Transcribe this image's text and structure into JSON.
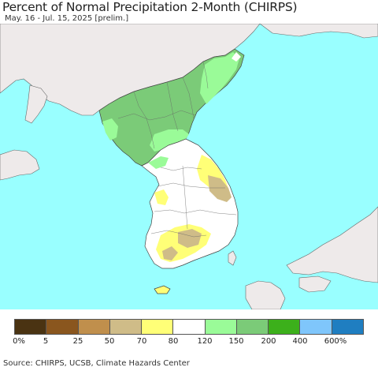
{
  "header": {
    "title": "Percent of Normal Precipitation 2-Month (CHIRPS)",
    "subtitle": "May. 16 - Jul. 15, 2025 [prelim.]"
  },
  "map": {
    "colors": {
      "ocean": "#99ffff",
      "land_outside": "#eeeaea",
      "border": "#444444"
    },
    "precipitation_classes": [
      {
        "range": "0-5%",
        "color": "#4a3312"
      },
      {
        "range": "5-25%",
        "color": "#8a561e"
      },
      {
        "range": "25-50%",
        "color": "#c08f4c"
      },
      {
        "range": "50-70%",
        "color": "#cfbc88"
      },
      {
        "range": "70-80%",
        "color": "#ffff77"
      },
      {
        "range": "80-120%",
        "color": "#ffffff"
      },
      {
        "range": "120-150%",
        "color": "#9afb98"
      },
      {
        "range": "150-200%",
        "color": "#7bcb78"
      },
      {
        "range": "200-400%",
        "color": "#3cb01b"
      },
      {
        "range": "400-600%",
        "color": "#7fc6fb"
      },
      {
        "range": ">600%",
        "color": "#1f7ec1"
      }
    ]
  },
  "legend": {
    "labels": [
      "0%",
      "5",
      "25",
      "50",
      "70",
      "80",
      "120",
      "150",
      "200",
      "400",
      "600%"
    ]
  },
  "footer": {
    "source": "Source: CHIRPS, UCSB, Climate Hazards Center"
  }
}
